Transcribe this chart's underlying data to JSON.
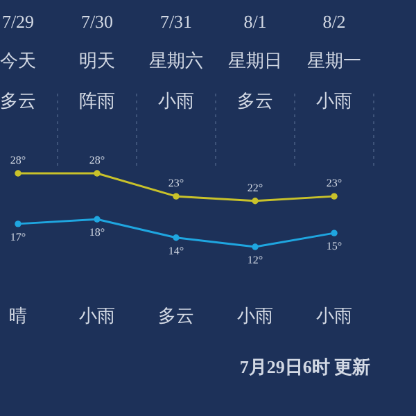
{
  "chart_data": {
    "type": "line",
    "categories": [
      "7/29",
      "7/30",
      "7/31",
      "8/1",
      "8/2"
    ],
    "series": [
      {
        "color": "#c9c22a",
        "values": [
          28,
          28,
          23,
          22,
          23
        ],
        "value_labels": [
          "28°",
          "28°",
          "23°",
          "22°",
          "23°"
        ]
      },
      {
        "color": "#1fa6e0",
        "values": [
          17,
          18,
          14,
          12,
          15
        ],
        "value_labels": [
          "17°",
          "18°",
          "14°",
          "12°",
          "15°"
        ]
      }
    ],
    "marker": "circle",
    "grid": "x",
    "annotations": [
      "今天",
      "明天",
      "星期六",
      "星期日",
      "星期一",
      "多云",
      "阵雨",
      "小雨",
      "多云",
      "小雨",
      "晴",
      "小雨",
      "多云",
      "小雨",
      "小雨",
      "7月29日6时 更新"
    ]
  }
}
